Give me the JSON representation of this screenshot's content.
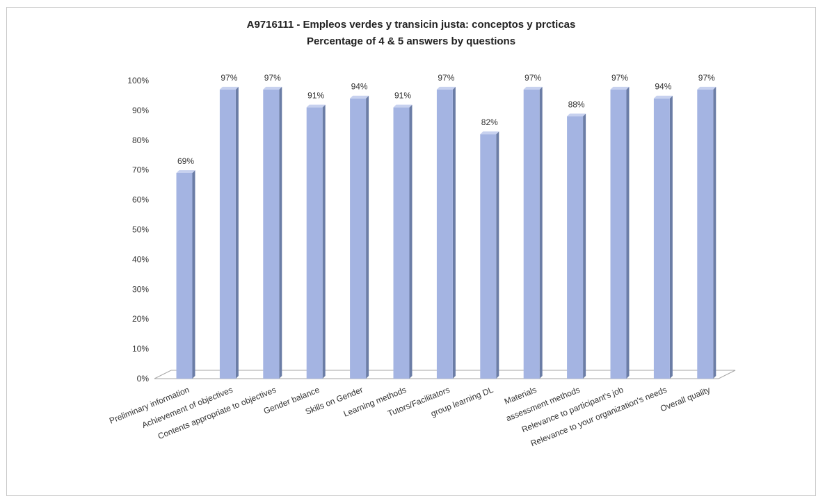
{
  "chart_data": {
    "type": "bar",
    "title": "A9716111 - Empleos verdes y transicin justa: conceptos y prcticas",
    "subtitle": "Percentage of 4 & 5 answers by questions",
    "xlabel": "",
    "ylabel": "",
    "ylim": [
      0,
      100
    ],
    "yticks": [
      "0%",
      "10%",
      "20%",
      "30%",
      "40%",
      "50%",
      "60%",
      "70%",
      "80%",
      "90%",
      "100%"
    ],
    "categories": [
      "Preliminary information",
      "Achievement of objectives",
      "Contents appropriate to objectives",
      "Gender balance",
      "Skills on Gender",
      "Learning methods",
      "Tutors/Facilitators",
      "group learning DL",
      "Materials",
      "assessment methods",
      "Relevance to participant's job",
      "Relevance to your organization's needs",
      "Overall quality"
    ],
    "values": [
      69,
      97,
      97,
      91,
      94,
      91,
      97,
      82,
      97,
      88,
      97,
      94,
      97
    ],
    "data_labels": [
      "69%",
      "97%",
      "97%",
      "91%",
      "94%",
      "91%",
      "97%",
      "82%",
      "97%",
      "88%",
      "97%",
      "94%",
      "97%"
    ],
    "grid": false,
    "legend": "none",
    "style": "3d-column"
  },
  "colors": {
    "bar_front": "#a4b4e2",
    "bar_side": "#6b7da6",
    "bar_top": "#c7d1ef",
    "axis": "#a6a6a6",
    "text": "#333333"
  }
}
